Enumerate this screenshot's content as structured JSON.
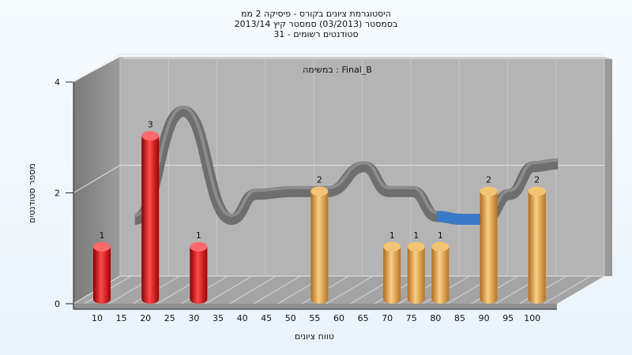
{
  "chart_data": {
    "type": "bar",
    "title_lines": [
      "היסטוגרמת ציונים בקורס - פיסיקה 2 ממ",
      "בסמסטר  (03/2013)  סמסטר קיץ 2013/14",
      "סטודנטים רשומים - 31"
    ],
    "annotation": "במשימה : Final_B",
    "xlabel": "טווח ציונים",
    "ylabel": "מספר סטודנטים",
    "ylim": [
      0,
      4
    ],
    "yticks": [
      0,
      2,
      4
    ],
    "categories": [
      "10",
      "15",
      "20",
      "25",
      "30",
      "35",
      "40",
      "45",
      "50",
      "55",
      "60",
      "65",
      "70",
      "75",
      "80",
      "85",
      "90",
      "95",
      "100"
    ],
    "bars": [
      {
        "category": "10",
        "value": 1,
        "group": "fail"
      },
      {
        "category": "20",
        "value": 3,
        "group": "fail"
      },
      {
        "category": "30",
        "value": 1,
        "group": "fail"
      },
      {
        "category": "55",
        "value": 2,
        "group": "pass"
      },
      {
        "category": "70",
        "value": 1,
        "group": "pass"
      },
      {
        "category": "75",
        "value": 1,
        "group": "pass"
      },
      {
        "category": "80",
        "value": 1,
        "group": "pass"
      },
      {
        "category": "90",
        "value": 2,
        "group": "pass"
      },
      {
        "category": "100",
        "value": 2,
        "group": "pass"
      }
    ],
    "trend_line": [
      {
        "x": "12.5",
        "y": 1.25
      },
      {
        "x": "22.5",
        "y": 3.2
      },
      {
        "x": "32.5",
        "y": 1.25
      },
      {
        "x": "37.5",
        "y": 1.7
      },
      {
        "x": "45",
        "y": 1.75
      },
      {
        "x": "52.5",
        "y": 1.75
      },
      {
        "x": "60",
        "y": 2.2
      },
      {
        "x": "65",
        "y": 1.75
      },
      {
        "x": "70",
        "y": 1.75
      },
      {
        "x": "75",
        "y": 1.3
      },
      {
        "x": "80",
        "y": 1.25
      },
      {
        "x": "85",
        "y": 1.25
      },
      {
        "x": "90",
        "y": 1.7
      },
      {
        "x": "95",
        "y": 2.2
      },
      {
        "x": "100",
        "y": 2.25
      }
    ],
    "trend_highlight_range": [
      "75",
      "85"
    ],
    "grid": true,
    "colors": {
      "fail": "#e01818",
      "pass": "#e8a848",
      "trend": "#6e6e6e",
      "trend_highlight": "#3a78c8",
      "wall_back": "#b4b4b4",
      "wall_side": "#8a8a8a",
      "floor": "#a8a8a8"
    }
  }
}
